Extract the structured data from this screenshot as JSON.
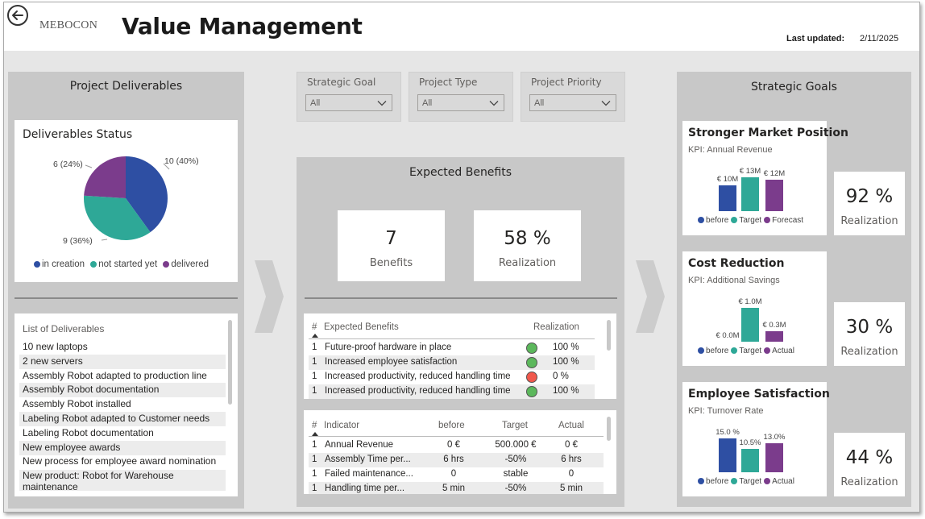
{
  "header": {
    "logo_text": "MEBOCON",
    "title": "Value Management",
    "last_updated_label": "Last updated:",
    "last_updated_value": "2/11/2025"
  },
  "colors": {
    "blue": "#2e4fa3",
    "teal": "#2ea897",
    "purple": "#7b3c8c",
    "red": "#f0584c",
    "green": "#5cb85c"
  },
  "project_deliverables": {
    "title": "Project Deliverables",
    "status_chart": {
      "title": "Deliverables Status",
      "label_in_creation": "10 (40%)",
      "label_not_started": "9 (36%)",
      "label_delivered": "6 (24%)",
      "legend": [
        "in creation",
        "not started yet",
        "delivered"
      ]
    },
    "list_title": "List of Deliverables",
    "list": [
      "10 new laptops",
      "2 new servers",
      "Assembly Robot adapted to production line",
      "Assembly Robot documentation",
      "Assembly Robot installed",
      "Labeling Robot adapted to Customer needs",
      "Labeling Robot documentation",
      "New employee awards",
      "New process for employee award nomination",
      "New product: Robot for Warehouse maintenance"
    ]
  },
  "filters": [
    {
      "label": "Strategic Goal",
      "value": "All"
    },
    {
      "label": "Project Type",
      "value": "All"
    },
    {
      "label": "Project Priority",
      "value": "All"
    }
  ],
  "expected_benefits": {
    "title": "Expected Benefits",
    "benefits_count": "7",
    "benefits_label": "Benefits",
    "realization_value": "58 %",
    "realization_label": "Realization",
    "benefits_table": {
      "headers": [
        "#",
        "Expected Benefits",
        "Realization"
      ],
      "rows": [
        {
          "num": "1",
          "name": "Future-proof hardware in place",
          "status": "green",
          "value": "100 %"
        },
        {
          "num": "1",
          "name": "Increased employee satisfaction",
          "status": "green",
          "value": "100 %"
        },
        {
          "num": "1",
          "name": "Increased productivity, reduced handling time",
          "status": "red",
          "value": "0 %"
        },
        {
          "num": "1",
          "name": "Increased productivity, reduced handling time",
          "status": "green",
          "value": "100 %"
        }
      ]
    },
    "indicator_table": {
      "headers": [
        "#",
        "Indicator",
        "before",
        "Target",
        "Actual"
      ],
      "rows": [
        {
          "num": "1",
          "name": "Annual Revenue",
          "before": "0 €",
          "target": "500.000 €",
          "actual": "0 €"
        },
        {
          "num": "1",
          "name": "Assembly Time per...",
          "before": "6 hrs",
          "target": "-50%",
          "actual": "6 hrs"
        },
        {
          "num": "1",
          "name": "Failed maintenance...",
          "before": "0",
          "target": "stable",
          "actual": "0"
        },
        {
          "num": "1",
          "name": "Handling time per...",
          "before": "5 min",
          "target": "-50%",
          "actual": "5 min"
        }
      ]
    }
  },
  "strategic_goals": {
    "title": "Strategic Goals",
    "goals": [
      {
        "title": "Stronger Market Position",
        "kpi": "KPI: Annual Revenue",
        "labels": [
          "€ 10M",
          "€ 13M",
          "€ 12M"
        ],
        "legend": [
          "before",
          "Target",
          "Forecast"
        ],
        "realization": "92 %",
        "realization_label": "Realization"
      },
      {
        "title": "Cost Reduction",
        "kpi": "KPI: Additional Savings",
        "labels": [
          "€ 0.0M",
          "€ 1.0M",
          "€ 0.3M"
        ],
        "legend": [
          "before",
          "Target",
          "Actual"
        ],
        "realization": "30 %",
        "realization_label": "Realization"
      },
      {
        "title": "Employee Satisfaction",
        "kpi": "KPI: Turnover Rate",
        "labels": [
          "15.0 %",
          "10.5%",
          "13.0%"
        ],
        "legend": [
          "before",
          "Target",
          "Actual"
        ],
        "realization": "44 %",
        "realization_label": "Realization"
      }
    ]
  },
  "chart_data": [
    {
      "type": "pie",
      "title": "Deliverables Status",
      "categories": [
        "in creation",
        "not started yet",
        "delivered"
      ],
      "values": [
        10,
        9,
        6
      ]
    },
    {
      "type": "bar",
      "title": "Stronger Market Position",
      "categories": [
        "before",
        "Target",
        "Forecast"
      ],
      "values": [
        10,
        13,
        12
      ],
      "ylabel": ""
    },
    {
      "type": "bar",
      "title": "Cost Reduction",
      "categories": [
        "before",
        "Target",
        "Actual"
      ],
      "values": [
        0.0,
        1.0,
        0.3
      ]
    },
    {
      "type": "bar",
      "title": "Employee Satisfaction",
      "categories": [
        "before",
        "Target",
        "Actual"
      ],
      "values": [
        15.0,
        10.5,
        13.0
      ]
    }
  ]
}
